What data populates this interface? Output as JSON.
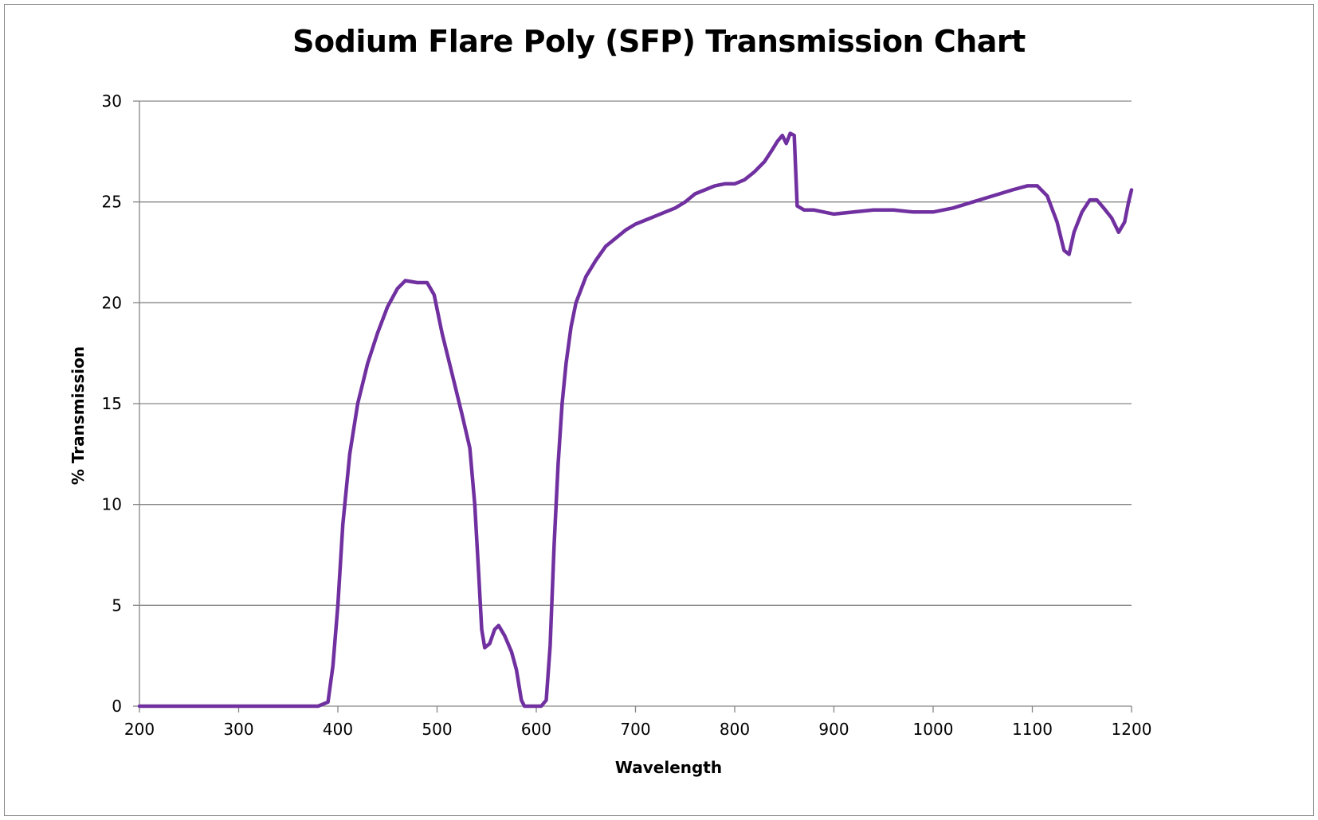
{
  "chart_data": {
    "type": "line",
    "title": "Sodium Flare Poly (SFP)  Transmission Chart",
    "xlabel": "Wavelength",
    "ylabel": "% Transmission",
    "xlim": [
      200,
      1200
    ],
    "ylim": [
      0,
      30
    ],
    "x_ticks": [
      200,
      300,
      400,
      500,
      600,
      700,
      800,
      900,
      1000,
      1100,
      1200
    ],
    "y_ticks": [
      0,
      5,
      10,
      15,
      20,
      25,
      30
    ],
    "grid": "horizontal",
    "legend": "none",
    "series": [
      {
        "color": "#7030a0",
        "points": [
          [
            200,
            0
          ],
          [
            300,
            0
          ],
          [
            380,
            0
          ],
          [
            390,
            0.2
          ],
          [
            395,
            2
          ],
          [
            400,
            5
          ],
          [
            405,
            9
          ],
          [
            412,
            12.5
          ],
          [
            420,
            15
          ],
          [
            430,
            17
          ],
          [
            440,
            18.5
          ],
          [
            450,
            19.8
          ],
          [
            460,
            20.7
          ],
          [
            468,
            21.1
          ],
          [
            480,
            21.0
          ],
          [
            490,
            21.0
          ],
          [
            497,
            20.4
          ],
          [
            505,
            18.5
          ],
          [
            515,
            16.5
          ],
          [
            525,
            14.5
          ],
          [
            533,
            12.8
          ],
          [
            538,
            10
          ],
          [
            542,
            6.5
          ],
          [
            545,
            3.8
          ],
          [
            548,
            2.9
          ],
          [
            553,
            3.1
          ],
          [
            558,
            3.8
          ],
          [
            562,
            4.0
          ],
          [
            568,
            3.5
          ],
          [
            575,
            2.7
          ],
          [
            580,
            1.8
          ],
          [
            585,
            0.3
          ],
          [
            588,
            0
          ],
          [
            600,
            0
          ],
          [
            605,
            0
          ],
          [
            610,
            0.3
          ],
          [
            614,
            3
          ],
          [
            618,
            8
          ],
          [
            622,
            12
          ],
          [
            626,
            15
          ],
          [
            630,
            17
          ],
          [
            635,
            18.8
          ],
          [
            640,
            20.0
          ],
          [
            650,
            21.3
          ],
          [
            660,
            22.1
          ],
          [
            670,
            22.8
          ],
          [
            680,
            23.2
          ],
          [
            690,
            23.6
          ],
          [
            700,
            23.9
          ],
          [
            710,
            24.1
          ],
          [
            720,
            24.3
          ],
          [
            730,
            24.5
          ],
          [
            740,
            24.7
          ],
          [
            750,
            25.0
          ],
          [
            760,
            25.4
          ],
          [
            770,
            25.6
          ],
          [
            780,
            25.8
          ],
          [
            790,
            25.9
          ],
          [
            800,
            25.9
          ],
          [
            810,
            26.1
          ],
          [
            820,
            26.5
          ],
          [
            830,
            27.0
          ],
          [
            838,
            27.6
          ],
          [
            843,
            28.0
          ],
          [
            848,
            28.3
          ],
          [
            852,
            27.9
          ],
          [
            856,
            28.4
          ],
          [
            860,
            28.3
          ],
          [
            863,
            24.8
          ],
          [
            870,
            24.6
          ],
          [
            880,
            24.6
          ],
          [
            900,
            24.4
          ],
          [
            920,
            24.5
          ],
          [
            940,
            24.6
          ],
          [
            960,
            24.6
          ],
          [
            980,
            24.5
          ],
          [
            1000,
            24.5
          ],
          [
            1020,
            24.7
          ],
          [
            1040,
            25.0
          ],
          [
            1060,
            25.3
          ],
          [
            1080,
            25.6
          ],
          [
            1095,
            25.8
          ],
          [
            1105,
            25.8
          ],
          [
            1115,
            25.3
          ],
          [
            1125,
            24.0
          ],
          [
            1132,
            22.6
          ],
          [
            1137,
            22.4
          ],
          [
            1142,
            23.5
          ],
          [
            1150,
            24.5
          ],
          [
            1158,
            25.1
          ],
          [
            1165,
            25.1
          ],
          [
            1172,
            24.7
          ],
          [
            1180,
            24.2
          ],
          [
            1187,
            23.5
          ],
          [
            1193,
            24.0
          ],
          [
            1197,
            25.0
          ],
          [
            1200,
            25.6
          ]
        ]
      }
    ]
  }
}
